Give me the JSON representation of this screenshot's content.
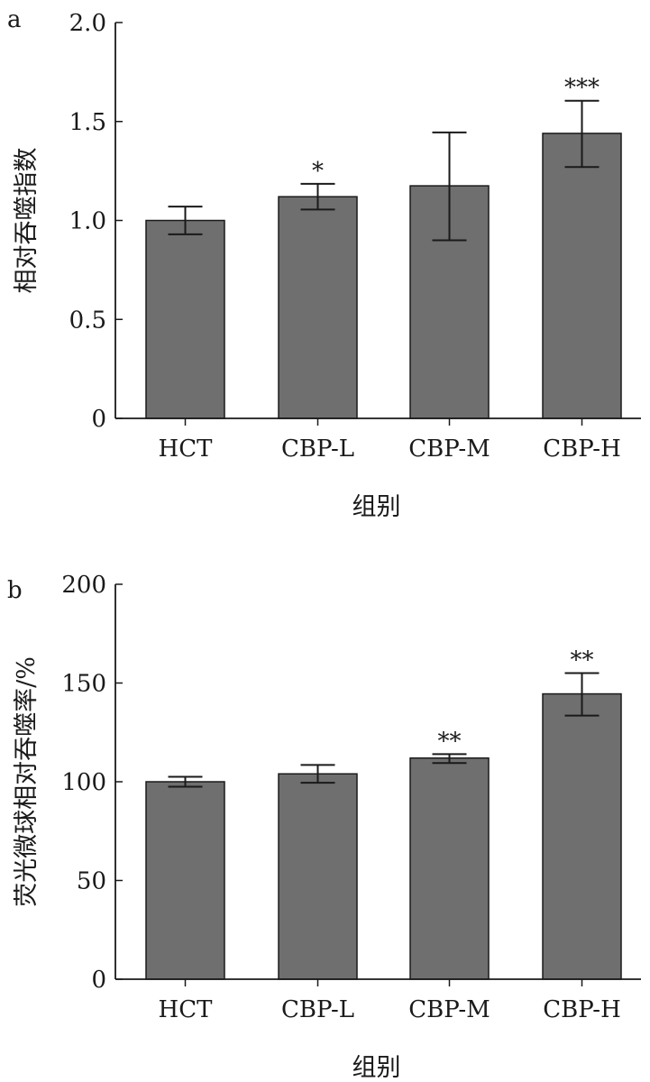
{
  "chart_data": [
    {
      "type": "bar",
      "panel_label": "a",
      "categories": [
        "HCT",
        "CBP-L",
        "CBP-M",
        "CBP-H"
      ],
      "values": [
        1.0,
        1.12,
        1.175,
        1.44
      ],
      "error_plus": [
        0.07,
        0.065,
        0.27,
        0.165
      ],
      "error_minus": [
        0.07,
        0.065,
        0.275,
        0.17
      ],
      "significance": [
        "",
        "*",
        "",
        "***"
      ],
      "xlabel": "组别",
      "ylabel": "相对吞噬指数",
      "ylim": [
        0,
        2.0
      ],
      "yticks": [
        0,
        0.5,
        1.0,
        1.5,
        2.0
      ],
      "ytick_labels": [
        "0",
        "0.5",
        "1.0",
        "1.5",
        "2.0"
      ],
      "bar_color": "#6f6f6f",
      "edge_color": "#1a1a1a",
      "grid": false
    },
    {
      "type": "bar",
      "panel_label": "b",
      "categories": [
        "HCT",
        "CBP-L",
        "CBP-M",
        "CBP-H"
      ],
      "values": [
        100,
        104,
        112,
        144.5
      ],
      "error_plus": [
        2.5,
        4.5,
        2.0,
        10.5
      ],
      "error_minus": [
        2.5,
        4.5,
        2.5,
        11.0
      ],
      "significance": [
        "",
        "",
        "**",
        "**"
      ],
      "xlabel": "组别",
      "ylabel": "荧光微球相对吞噬率/%",
      "ylim": [
        0,
        200
      ],
      "yticks": [
        0,
        50,
        100,
        150,
        200
      ],
      "ytick_labels": [
        "0",
        "50",
        "100",
        "150",
        "200"
      ],
      "bar_color": "#6f6f6f",
      "edge_color": "#1a1a1a",
      "grid": false
    }
  ]
}
